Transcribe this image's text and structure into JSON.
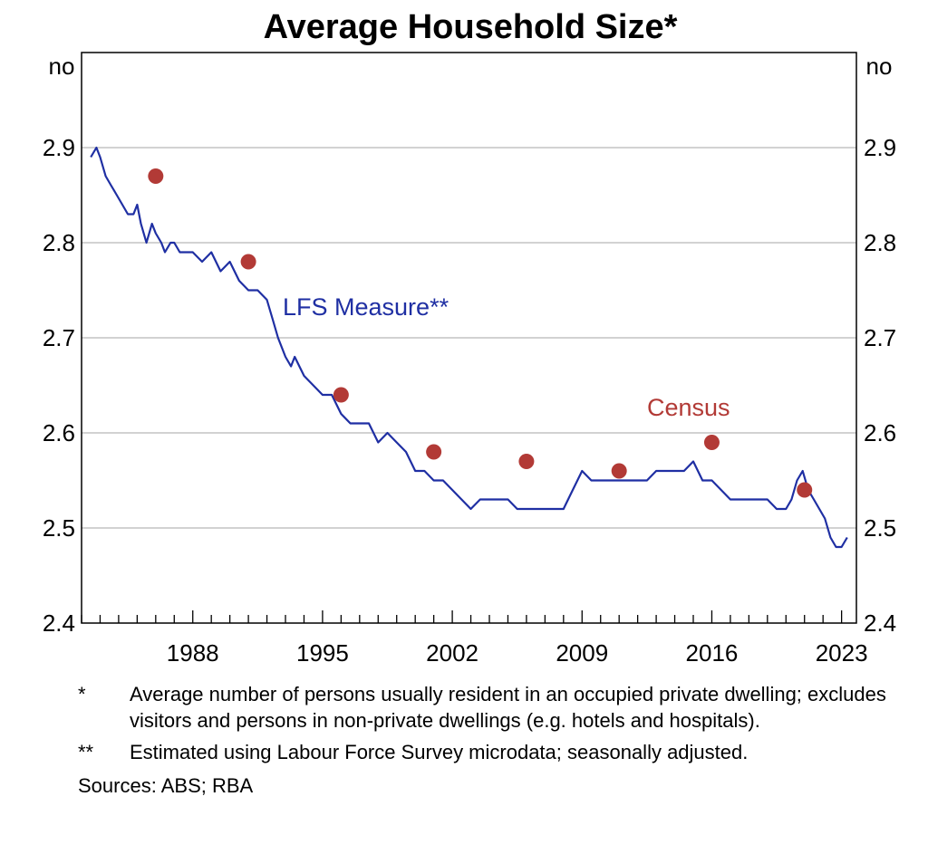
{
  "chart_data": {
    "type": "line",
    "title": "Average Household Size*",
    "y_unit_left": "no",
    "y_unit_right": "no",
    "ylim": [
      2.4,
      3.0
    ],
    "yticks": [
      2.4,
      2.5,
      2.6,
      2.7,
      2.8,
      2.9
    ],
    "ytick_labels": [
      "2.4",
      "2.5",
      "2.6",
      "2.7",
      "2.8",
      "2.9"
    ],
    "xlim": [
      1982.0,
      2023.8
    ],
    "xticks": [
      1988,
      1995,
      2002,
      2009,
      2016,
      2023
    ],
    "xtick_labels": [
      "1988",
      "1995",
      "2002",
      "2009",
      "2016",
      "2023"
    ],
    "grid": true,
    "series": [
      {
        "name": "LFS Measure**",
        "color": "#1f2fa3",
        "x": [
          1982.5,
          1982.8,
          1983.0,
          1983.3,
          1983.6,
          1983.9,
          1984.2,
          1984.5,
          1984.8,
          1985.0,
          1985.2,
          1985.5,
          1985.8,
          1986.0,
          1986.3,
          1986.5,
          1986.8,
          1987.0,
          1987.3,
          1987.6,
          1988.0,
          1988.5,
          1989.0,
          1989.5,
          1990.0,
          1990.5,
          1991.0,
          1991.5,
          1992.0,
          1992.3,
          1992.6,
          1993.0,
          1993.3,
          1993.5,
          1994.0,
          1994.5,
          1995.0,
          1995.5,
          1996.0,
          1996.5,
          1996.8,
          1997.0,
          1997.5,
          1998.0,
          1998.5,
          1999.0,
          1999.5,
          2000.0,
          2000.5,
          2001.0,
          2001.5,
          2002.0,
          2002.5,
          2003.0,
          2003.5,
          2004.0,
          2004.5,
          2005.0,
          2005.5,
          2006.0,
          2006.5,
          2007.0,
          2007.5,
          2008.0,
          2008.5,
          2009.0,
          2009.5,
          2010.0,
          2010.5,
          2011.0,
          2011.5,
          2012.0,
          2012.5,
          2013.0,
          2013.5,
          2014.0,
          2014.5,
          2015.0,
          2015.5,
          2016.0,
          2016.5,
          2017.0,
          2017.5,
          2018.0,
          2018.5,
          2019.0,
          2019.5,
          2020.0,
          2020.3,
          2020.6,
          2020.9,
          2021.2,
          2021.5,
          2021.8,
          2022.1,
          2022.4,
          2022.7,
          2023.0,
          2023.3
        ],
        "y": [
          2.89,
          2.9,
          2.89,
          2.87,
          2.86,
          2.85,
          2.84,
          2.83,
          2.83,
          2.84,
          2.82,
          2.8,
          2.82,
          2.81,
          2.8,
          2.79,
          2.8,
          2.8,
          2.79,
          2.79,
          2.79,
          2.78,
          2.79,
          2.77,
          2.78,
          2.76,
          2.75,
          2.75,
          2.74,
          2.72,
          2.7,
          2.68,
          2.67,
          2.68,
          2.66,
          2.65,
          2.64,
          2.64,
          2.62,
          2.61,
          2.61,
          2.61,
          2.61,
          2.59,
          2.6,
          2.59,
          2.58,
          2.56,
          2.56,
          2.55,
          2.55,
          2.54,
          2.53,
          2.52,
          2.53,
          2.53,
          2.53,
          2.53,
          2.52,
          2.52,
          2.52,
          2.52,
          2.52,
          2.52,
          2.54,
          2.56,
          2.55,
          2.55,
          2.55,
          2.55,
          2.55,
          2.55,
          2.55,
          2.56,
          2.56,
          2.56,
          2.56,
          2.57,
          2.55,
          2.55,
          2.54,
          2.53,
          2.53,
          2.53,
          2.53,
          2.53,
          2.52,
          2.52,
          2.53,
          2.55,
          2.56,
          2.54,
          2.53,
          2.52,
          2.51,
          2.49,
          2.48,
          2.48,
          2.49
        ]
      },
      {
        "name": "Census",
        "color": "#b23a36",
        "type": "scatter",
        "x": [
          1986,
          1991,
          1996,
          2001,
          2006,
          2011,
          2016,
          2021
        ],
        "y": [
          2.87,
          2.78,
          2.64,
          2.58,
          2.57,
          2.56,
          2.59,
          2.54
        ]
      }
    ]
  },
  "notes": [
    {
      "mark": "*",
      "text": "Average number of persons usually resident in an occupied private dwelling; excludes visitors and persons in non-private dwellings (e.g. hotels and hospitals)."
    },
    {
      "mark": "**",
      "text": "Estimated using Labour Force Survey microdata; seasonally adjusted."
    }
  ],
  "sources": "Sources: ABS; RBA"
}
